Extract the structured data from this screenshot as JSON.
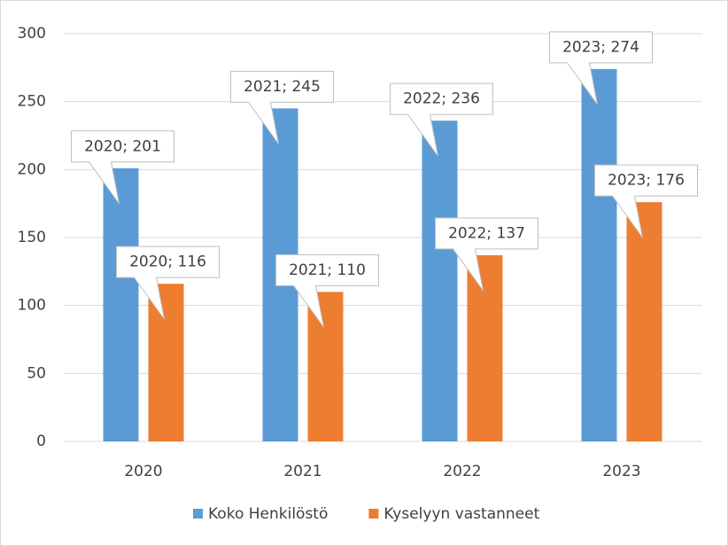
{
  "chart_data": {
    "type": "bar",
    "categories": [
      "2020",
      "2021",
      "2022",
      "2023"
    ],
    "series": [
      {
        "name": "Koko Henkilöstö",
        "color": "#5b9bd5",
        "values": [
          201,
          245,
          236,
          274
        ],
        "value_labels": [
          "2020; 201",
          "2021; 245",
          "2022; 236",
          "2023; 274"
        ]
      },
      {
        "name": "Kyselyyn vastanneet",
        "color": "#ed7d31",
        "values": [
          116,
          110,
          137,
          176
        ],
        "value_labels": [
          "2020; 116",
          "2021; 110",
          "2022; 137",
          "2023; 176"
        ]
      }
    ],
    "ylim": [
      0,
      300
    ],
    "yticks": [
      0,
      50,
      100,
      150,
      200,
      250,
      300
    ],
    "grid": true,
    "legend": "bottom"
  }
}
